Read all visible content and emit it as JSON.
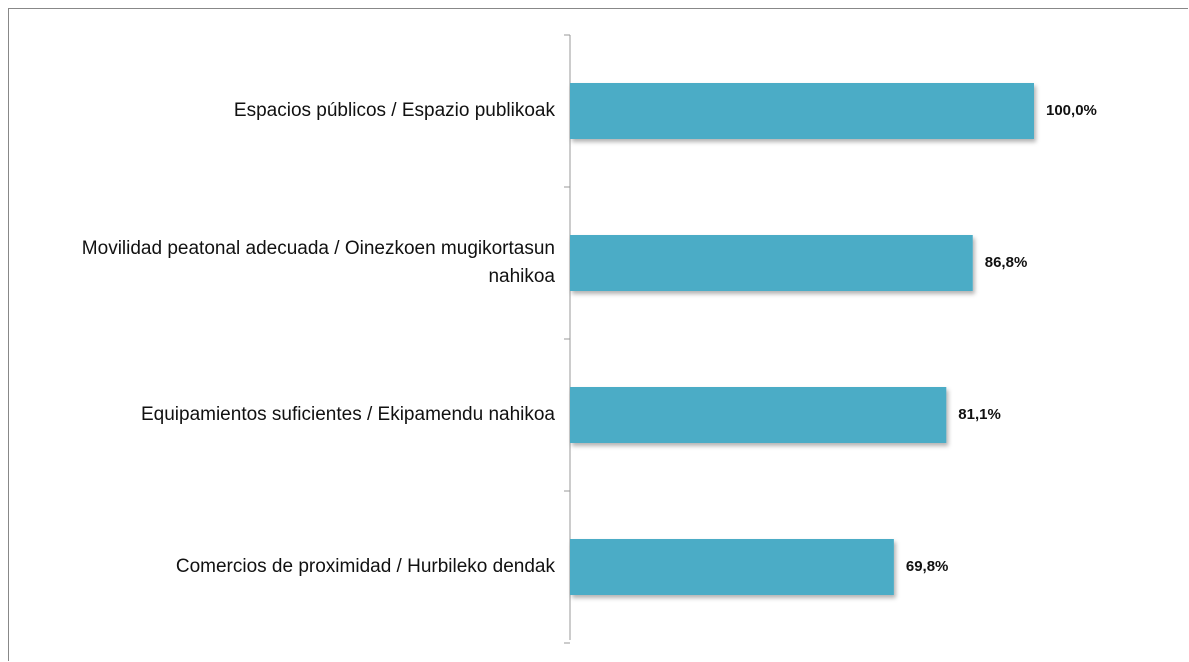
{
  "chart_data": {
    "type": "bar",
    "orientation": "horizontal",
    "categories": [
      "Espacios públicos  / Espazio publikoak",
      "Movilidad peatonal adecuada / Oinezkoen mugikortasun nahikoa",
      "Equipamientos suficientes  / Ekipamendu nahikoa",
      "Comercios de proximidad  / Hurbileko dendak"
    ],
    "values": [
      100.0,
      86.8,
      81.1,
      69.8
    ],
    "value_labels": [
      "100,0%",
      "86,8%",
      "81,1%",
      "69,8%"
    ],
    "color": "#4bacc6",
    "xlim": [
      0,
      100
    ]
  }
}
